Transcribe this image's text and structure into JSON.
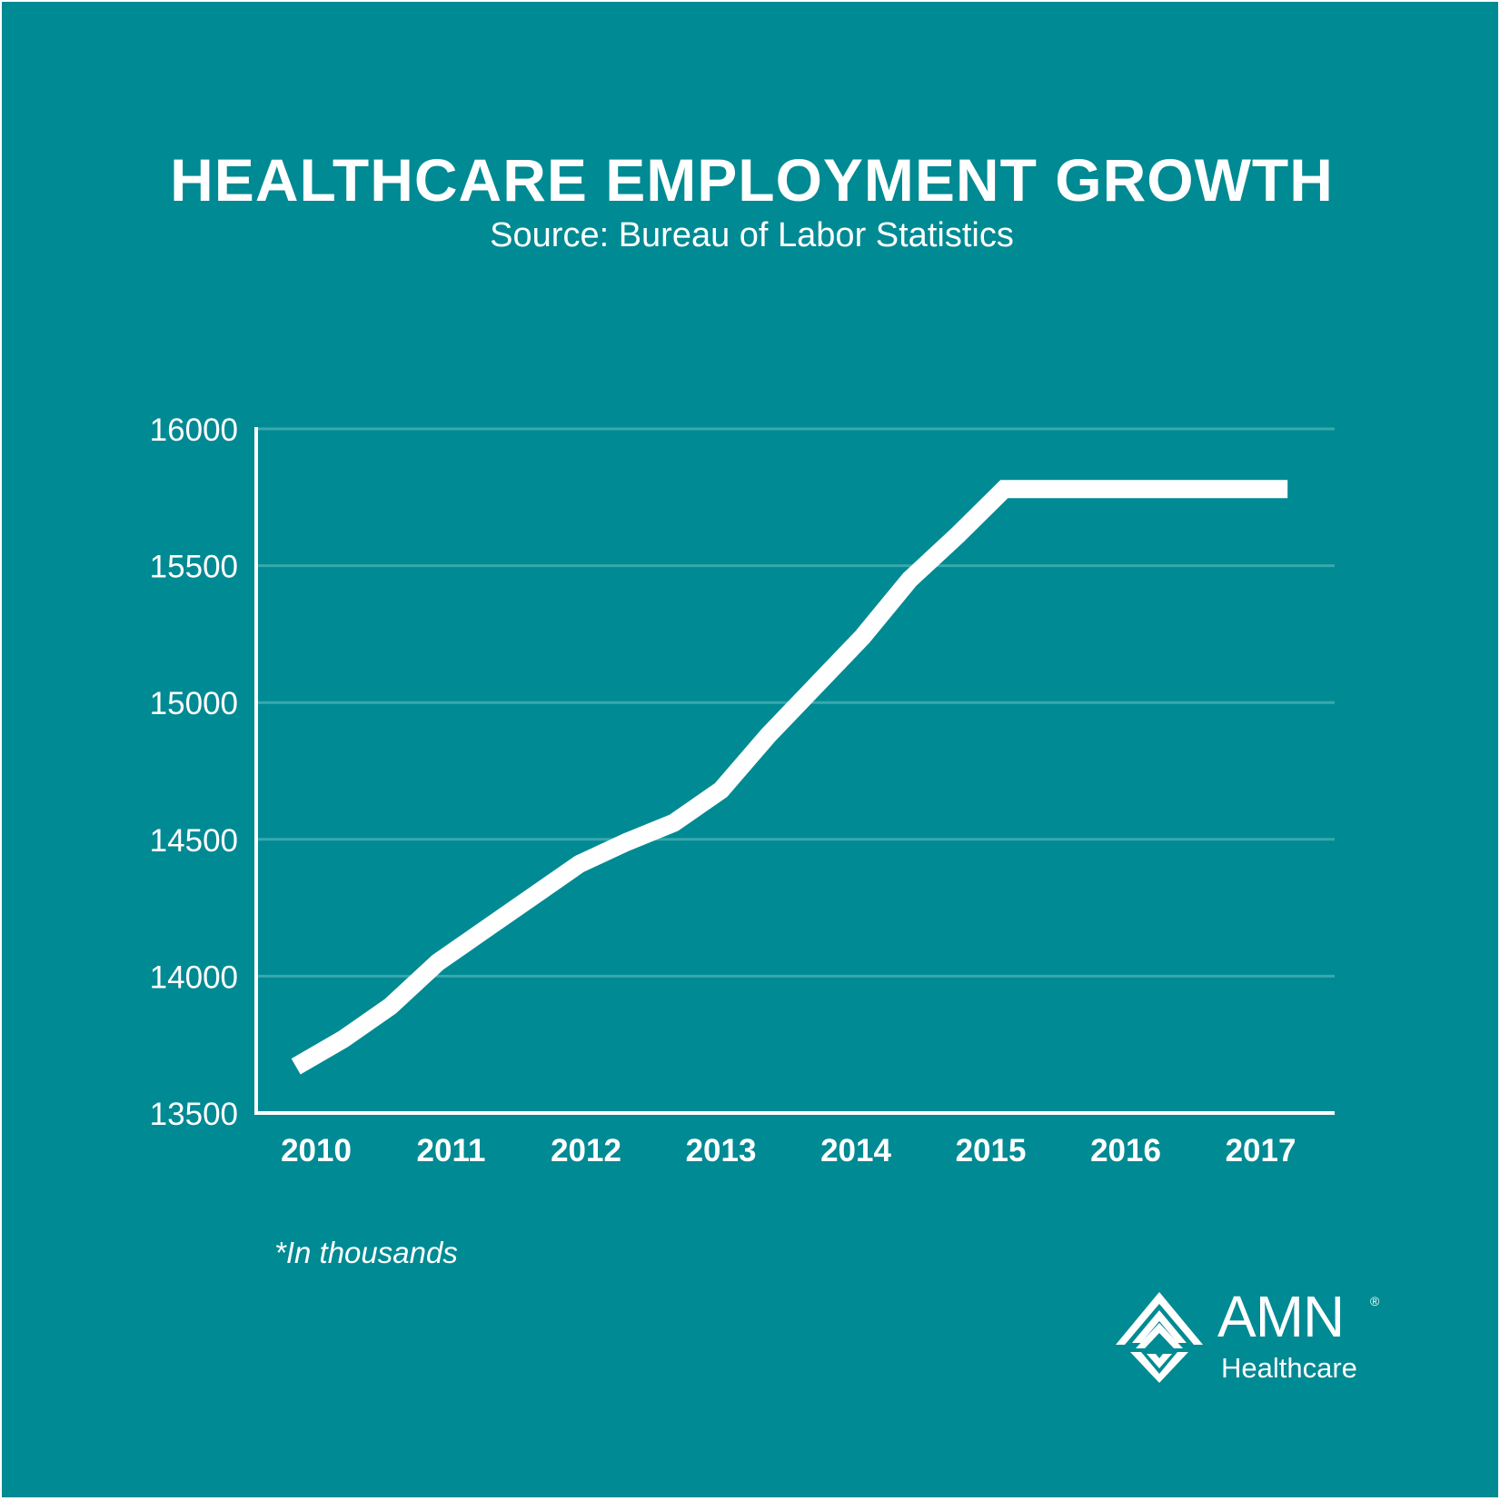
{
  "colors": {
    "background": "#008A93",
    "line": "#ffffff",
    "grid": "#3aa8ae",
    "text": "#ffffff"
  },
  "title": "HEALTHCARE EMPLOYMENT GROWTH",
  "subtitle": "Source: Bureau of Labor Statistics",
  "note": "*In thousands",
  "brand": {
    "name": "AMN",
    "registered": "®",
    "tagline": "Healthcare"
  },
  "chart_data": {
    "type": "line",
    "title": "HEALTHCARE EMPLOYMENT GROWTH",
    "subtitle": "Source: Bureau of Labor Statistics",
    "xlabel": "",
    "ylabel": "",
    "categories": [
      "2010",
      "2011",
      "2012",
      "2013",
      "2014",
      "2015",
      "2016",
      "2017"
    ],
    "y_ticks": [
      13500,
      14000,
      14500,
      15000,
      15500,
      16000
    ],
    "ylim": [
      13500,
      16000
    ],
    "grid": true,
    "legend": "none",
    "series": [
      {
        "x": [
          2009.85,
          2010.2,
          2010.55,
          2010.9,
          2011.25,
          2011.6,
          2011.95,
          2012.3,
          2012.65,
          2013.0,
          2013.35,
          2013.7,
          2014.05,
          2014.4,
          2014.75,
          2015.1,
          2015.45,
          2015.8,
          2016.15,
          2016.5,
          2016.85,
          2017.2
        ],
        "values": [
          13670,
          13770,
          13890,
          14050,
          14170,
          14290,
          14410,
          14490,
          14560,
          14680,
          14880,
          15060,
          15240,
          15450,
          15610,
          15780,
          15780,
          15780,
          15780,
          15780,
          15780,
          15780
        ]
      }
    ]
  }
}
